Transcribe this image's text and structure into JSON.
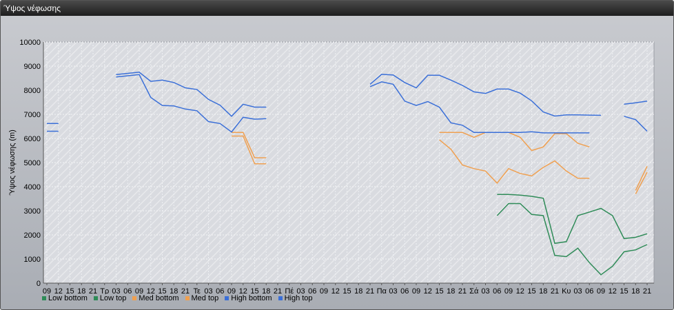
{
  "window": {
    "title": "Ύψος νέφωσης"
  },
  "chart_data": {
    "type": "line",
    "ylabel": "Ύψος νέφωσης (m)",
    "ylim": [
      0,
      10000
    ],
    "yticks": [
      0,
      1000,
      2000,
      3000,
      4000,
      5000,
      6000,
      7000,
      8000,
      9000,
      10000
    ],
    "grid": true,
    "legend_position": "bottom",
    "x_labels": [
      "09",
      "12",
      "15",
      "18",
      "21",
      "Τρ",
      "03",
      "06",
      "09",
      "12",
      "15",
      "18",
      "21",
      "Τε",
      "03",
      "06",
      "09",
      "12",
      "15",
      "18",
      "21",
      "Πέ",
      "03",
      "06",
      "09",
      "12",
      "15",
      "18",
      "21",
      "Πα",
      "03",
      "06",
      "09",
      "12",
      "15",
      "18",
      "21",
      "Σά",
      "03",
      "06",
      "09",
      "12",
      "15",
      "18",
      "21",
      "Κυ",
      "03",
      "06",
      "09",
      "12",
      "15",
      "18",
      "21"
    ],
    "series": [
      {
        "name": "Low bottom",
        "color": "#2e8b57",
        "values": [
          null,
          null,
          null,
          null,
          null,
          null,
          null,
          null,
          null,
          null,
          null,
          null,
          null,
          null,
          null,
          null,
          null,
          null,
          null,
          null,
          null,
          null,
          null,
          null,
          null,
          null,
          null,
          null,
          null,
          null,
          null,
          null,
          null,
          null,
          null,
          null,
          null,
          null,
          null,
          2800,
          3300,
          3300,
          2850,
          2800,
          1150,
          1100,
          1450,
          850,
          350,
          700,
          1300,
          1380,
          1600
        ]
      },
      {
        "name": "Low top",
        "color": "#2e8b57",
        "values": [
          null,
          null,
          null,
          null,
          null,
          null,
          null,
          null,
          null,
          null,
          null,
          null,
          null,
          null,
          null,
          null,
          null,
          null,
          null,
          null,
          null,
          null,
          null,
          null,
          null,
          null,
          null,
          null,
          null,
          null,
          null,
          null,
          null,
          null,
          null,
          null,
          null,
          null,
          null,
          3680,
          3680,
          3650,
          3600,
          3520,
          1650,
          1720,
          2800,
          2950,
          3100,
          2800,
          1850,
          1900,
          2050
        ]
      },
      {
        "name": "Med bottom",
        "color": "#f0a050",
        "values": [
          null,
          null,
          null,
          null,
          null,
          null,
          null,
          null,
          null,
          null,
          null,
          null,
          null,
          null,
          null,
          null,
          6100,
          6100,
          4950,
          4950,
          null,
          null,
          null,
          null,
          null,
          null,
          null,
          null,
          null,
          null,
          null,
          null,
          null,
          null,
          5950,
          5550,
          4900,
          4750,
          4650,
          4150,
          4750,
          4550,
          4450,
          4800,
          5070,
          4650,
          4350,
          4350,
          null,
          null,
          null,
          3700,
          4600
        ]
      },
      {
        "name": "Med top",
        "color": "#f0a050",
        "values": [
          null,
          null,
          null,
          null,
          null,
          null,
          null,
          null,
          null,
          null,
          null,
          null,
          null,
          null,
          null,
          null,
          6250,
          6250,
          5200,
          5200,
          null,
          null,
          null,
          null,
          null,
          null,
          null,
          null,
          null,
          null,
          null,
          null,
          null,
          null,
          6250,
          6250,
          6250,
          6050,
          6250,
          6250,
          6250,
          6050,
          5500,
          5650,
          6200,
          6200,
          5800,
          5650,
          null,
          null,
          null,
          3850,
          4850
        ]
      },
      {
        "name": "High bottom",
        "color": "#3a6fd8",
        "values": [
          6300,
          6300,
          null,
          null,
          null,
          null,
          8550,
          8600,
          8650,
          7700,
          7370,
          7350,
          7220,
          7150,
          6700,
          6620,
          6270,
          6880,
          6800,
          6820,
          null,
          null,
          null,
          null,
          null,
          null,
          null,
          null,
          8150,
          8350,
          8250,
          7550,
          7370,
          7530,
          7300,
          6650,
          6550,
          6250,
          6250,
          6250,
          6250,
          6250,
          6280,
          6230,
          6230,
          6230,
          6230,
          6230,
          null,
          null,
          6920,
          6780,
          6300
        ]
      },
      {
        "name": "High top",
        "color": "#3a6fd8",
        "values": [
          6620,
          6620,
          null,
          null,
          null,
          null,
          8650,
          8700,
          8750,
          8370,
          8420,
          8320,
          8100,
          8030,
          7620,
          7380,
          6920,
          7420,
          7300,
          7300,
          null,
          null,
          null,
          null,
          null,
          null,
          null,
          null,
          8250,
          8660,
          8630,
          8320,
          8100,
          8620,
          8620,
          8420,
          8200,
          7930,
          7870,
          8050,
          8050,
          7880,
          7560,
          7100,
          6930,
          6980,
          6980,
          6970,
          6960,
          null,
          7420,
          7480,
          7550
        ]
      }
    ]
  }
}
